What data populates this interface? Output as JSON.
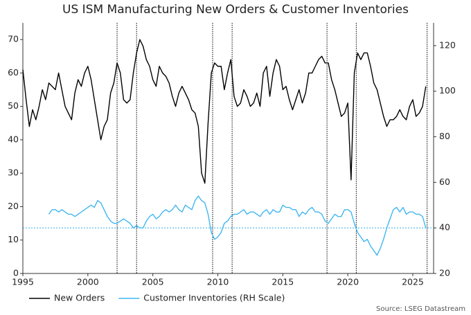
{
  "chart_data": {
    "type": "line",
    "title": "US ISM Manufacturing New Orders & Customer Inventories",
    "source": "Source: LSEG Datastream",
    "x": [
      1995,
      1995.25,
      1995.5,
      1995.75,
      1996,
      1996.25,
      1996.5,
      1996.75,
      1997,
      1997.25,
      1997.5,
      1997.75,
      1998,
      1998.25,
      1998.5,
      1998.75,
      1999,
      1999.25,
      1999.5,
      1999.75,
      2000,
      2000.25,
      2000.5,
      2000.75,
      2001,
      2001.25,
      2001.5,
      2001.75,
      2002,
      2002.25,
      2002.5,
      2002.75,
      2003,
      2003.25,
      2003.5,
      2003.75,
      2004,
      2004.25,
      2004.5,
      2004.75,
      2005,
      2005.25,
      2005.5,
      2005.75,
      2006,
      2006.25,
      2006.5,
      2006.75,
      2007,
      2007.25,
      2007.5,
      2007.75,
      2008,
      2008.25,
      2008.5,
      2008.75,
      2009,
      2009.25,
      2009.5,
      2009.75,
      2010,
      2010.25,
      2010.5,
      2010.75,
      2011,
      2011.25,
      2011.5,
      2011.75,
      2012,
      2012.25,
      2012.5,
      2012.75,
      2013,
      2013.25,
      2013.5,
      2013.75,
      2014,
      2014.25,
      2014.5,
      2014.75,
      2015,
      2015.25,
      2015.5,
      2015.75,
      2016,
      2016.25,
      2016.5,
      2016.75,
      2017,
      2017.25,
      2017.5,
      2017.75,
      2018,
      2018.25,
      2018.5,
      2018.75,
      2019,
      2019.25,
      2019.5,
      2019.75,
      2020,
      2020.25,
      2020.5,
      2020.75,
      2021,
      2021.25,
      2021.5,
      2021.75,
      2022,
      2022.25,
      2022.5,
      2022.75,
      2023,
      2023.25,
      2023.5,
      2023.75,
      2024,
      2024.25,
      2024.5,
      2024.75,
      2025,
      2025.25,
      2025.5,
      2025.75,
      2026
    ],
    "series": [
      {
        "name": "New Orders",
        "color": "#000000",
        "axis": "y",
        "values": [
          61,
          52,
          44,
          49,
          46,
          50,
          55,
          52,
          57,
          56,
          55,
          60,
          55,
          50,
          48,
          46,
          54,
          58,
          56,
          60,
          62,
          58,
          52,
          46,
          40,
          44,
          46,
          54,
          57,
          63,
          60,
          52,
          51,
          52,
          60,
          66,
          70,
          68,
          64,
          62,
          58,
          56,
          62,
          60,
          59,
          57,
          53,
          50,
          54,
          56,
          54,
          52,
          49,
          48,
          44,
          30,
          27,
          45,
          60,
          63,
          62,
          62,
          55,
          60,
          64,
          53,
          50,
          51,
          55,
          53,
          50,
          51,
          54,
          50,
          60,
          62,
          53,
          60,
          64,
          62,
          55,
          56,
          52,
          49,
          52,
          55,
          51,
          54,
          60,
          60,
          62,
          64,
          65,
          63,
          63,
          58,
          55,
          51,
          47,
          48,
          51,
          28,
          60,
          66,
          64,
          66,
          66,
          62,
          57,
          55,
          51,
          47,
          44,
          46,
          46,
          47,
          49,
          47,
          46,
          50,
          52,
          47,
          48,
          50,
          56
        ]
      },
      {
        "name": "Customer Inventories (RH Scale)",
        "color": "#40b6f0",
        "axis": "y2",
        "values": [
          null,
          null,
          null,
          null,
          null,
          null,
          null,
          null,
          46,
          48,
          48,
          47,
          48,
          47,
          46,
          46,
          45,
          46,
          47,
          48,
          49,
          50,
          49,
          52,
          51,
          48,
          45,
          43,
          42,
          42,
          43,
          44,
          43,
          42,
          40,
          41,
          40,
          40,
          43,
          45,
          46,
          44,
          45,
          47,
          48,
          47,
          48,
          50,
          48,
          47,
          50,
          49,
          48,
          52,
          54,
          52,
          51,
          46,
          38,
          35,
          36,
          38,
          42,
          43,
          45,
          46,
          46,
          47,
          48,
          46,
          47,
          47,
          46,
          45,
          47,
          48,
          46,
          48,
          47,
          47,
          50,
          49,
          49,
          48,
          48,
          45,
          47,
          46,
          48,
          49,
          47,
          47,
          46,
          43,
          42,
          44,
          46,
          45,
          45,
          48,
          48,
          47,
          42,
          38,
          36,
          34,
          35,
          32,
          30,
          28,
          31,
          35,
          40,
          44,
          48,
          49,
          47,
          49,
          46,
          47,
          47,
          46,
          46,
          45,
          40
        ]
      }
    ],
    "xlim": [
      1995,
      2026.6
    ],
    "xticks": [
      1995,
      2000,
      2005,
      2010,
      2015,
      2020,
      2025
    ],
    "ylim": [
      0,
      75
    ],
    "yticks": [
      0,
      10,
      20,
      30,
      40,
      50,
      60,
      70
    ],
    "y2lim": [
      20,
      130
    ],
    "y2ticks": [
      20,
      40,
      60,
      80,
      100,
      120
    ],
    "vlines": [
      2002.25,
      2003.75,
      2009.6,
      2011.1,
      2018.4,
      2020.65,
      2026.1
    ],
    "vline_color": "#000000",
    "hline": {
      "value": 40,
      "axis": "y2",
      "color": "#40b6f0"
    }
  }
}
